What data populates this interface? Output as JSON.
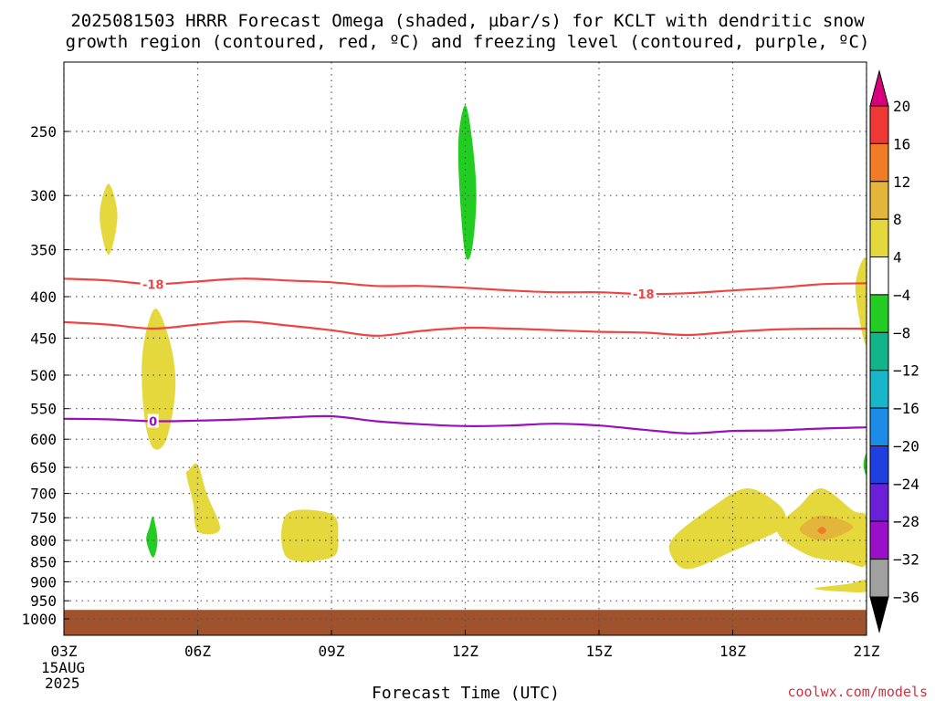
{
  "title": {
    "line1": "2025081503 HRRR Forecast Omega (shaded, µbar/s) for KCLT with dendritic snow",
    "line2": "growth region (contoured, red, ºC) and freezing level (contoured, purple, ºC)"
  },
  "xlabel": "Forecast Time (UTC)",
  "start_date": {
    "day": "15AUG",
    "year": "2025"
  },
  "watermark": "coolwx.com/models",
  "chart_data": {
    "type": "contour",
    "x_ticks": [
      "03Z",
      "06Z",
      "09Z",
      "12Z",
      "15Z",
      "18Z",
      "21Z"
    ],
    "y_ticks": [
      "250",
      "300",
      "350",
      "400",
      "450",
      "500",
      "550",
      "600",
      "650",
      "700",
      "750",
      "800",
      "850",
      "900",
      "950",
      "1000"
    ],
    "y_scale": "log-pressure",
    "grid": true,
    "colorbar": {
      "placement": "right",
      "labels": [
        "20",
        "16",
        "12",
        "8",
        "4",
        "-4",
        "-8",
        "-12",
        "-16",
        "-20",
        "-24",
        "-28",
        "-32",
        "-36"
      ],
      "colors": [
        "#d8007d",
        "#ee3835",
        "#f07c28",
        "#e3b53a",
        "#e5d83d",
        "#ffffff",
        "#22cc22",
        "#13b48a",
        "#19b5c8",
        "#1c8ce8",
        "#1f3fe0",
        "#6a20d8",
        "#9a10c8",
        "#a0a0a0",
        "#000000"
      ]
    },
    "series": [
      {
        "name": "-18",
        "color": "#ee4444",
        "points": [
          [
            3.0,
            380
          ],
          [
            4.0,
            382
          ],
          [
            5.0,
            386
          ],
          [
            6.0,
            383
          ],
          [
            7.0,
            380
          ],
          [
            8.0,
            382
          ],
          [
            9.0,
            384
          ],
          [
            10.0,
            388
          ],
          [
            11.0,
            388
          ],
          [
            12.0,
            390
          ],
          [
            13.0,
            393
          ],
          [
            14.0,
            395
          ],
          [
            15.0,
            395
          ],
          [
            16.0,
            397
          ],
          [
            17.0,
            396
          ],
          [
            18.0,
            393
          ],
          [
            19.0,
            390
          ],
          [
            20.0,
            386
          ],
          [
            21.0,
            385
          ]
        ]
      },
      {
        "name": "-18",
        "color": "#ee4444",
        "points": [
          [
            3.0,
            430
          ],
          [
            4.0,
            433
          ],
          [
            5.0,
            438
          ],
          [
            6.0,
            433
          ],
          [
            7.0,
            429
          ],
          [
            8.0,
            434
          ],
          [
            9.0,
            440
          ],
          [
            10.0,
            447
          ],
          [
            11.0,
            441
          ],
          [
            12.0,
            437
          ],
          [
            13.0,
            438
          ],
          [
            14.0,
            440
          ],
          [
            15.0,
            442
          ],
          [
            16.0,
            443
          ],
          [
            17.0,
            446
          ],
          [
            18.0,
            442
          ],
          [
            19.0,
            439
          ],
          [
            20.0,
            438
          ],
          [
            21.0,
            438
          ]
        ]
      },
      {
        "name": "0",
        "color": "#9911bb",
        "points": [
          [
            3.0,
            566
          ],
          [
            4.0,
            567
          ],
          [
            5.0,
            570
          ],
          [
            6.0,
            569
          ],
          [
            7.0,
            567
          ],
          [
            8.0,
            564
          ],
          [
            9.0,
            562
          ],
          [
            10.0,
            570
          ],
          [
            11.0,
            575
          ],
          [
            12.0,
            578
          ],
          [
            13.0,
            577
          ],
          [
            14.0,
            574
          ],
          [
            15.0,
            577
          ],
          [
            16.0,
            584
          ],
          [
            17.0,
            590
          ],
          [
            18.0,
            586
          ],
          [
            19.0,
            585
          ],
          [
            20.0,
            582
          ],
          [
            21.0,
            580
          ]
        ]
      }
    ],
    "contour_labels": [
      {
        "text": "-18",
        "x": 5.0,
        "y": 386,
        "color": "#ee4444"
      },
      {
        "text": "-18",
        "x": 16.0,
        "y": 397,
        "color": "#ee4444"
      },
      {
        "text": "0",
        "x": 5.0,
        "y": 570,
        "color": "#9911bb"
      }
    ],
    "shaded_regions": [
      {
        "level": "4 to 8",
        "color": "#e5d83d",
        "points": [
          [
            4.0,
            290
          ],
          [
            4.2,
            318
          ],
          [
            4.0,
            355
          ],
          [
            3.8,
            318
          ]
        ]
      },
      {
        "level": "4 to 8",
        "color": "#e5d83d",
        "points": [
          [
            5.1,
            415
          ],
          [
            5.4,
            460
          ],
          [
            5.5,
            520
          ],
          [
            5.3,
            600
          ],
          [
            5.0,
            615
          ],
          [
            4.8,
            560
          ],
          [
            4.75,
            480
          ],
          [
            4.9,
            430
          ]
        ]
      },
      {
        "level": "4 to 8",
        "color": "#e5d83d",
        "points": [
          [
            5.8,
            655
          ],
          [
            6.0,
            645
          ],
          [
            6.2,
            700
          ],
          [
            6.5,
            775
          ],
          [
            6.0,
            780
          ],
          [
            5.9,
            720
          ],
          [
            5.75,
            665
          ]
        ]
      },
      {
        "level": "4 to 8",
        "color": "#e5d83d",
        "points": [
          [
            8.0,
            742
          ],
          [
            9.0,
            742
          ],
          [
            9.15,
            792
          ],
          [
            9.0,
            840
          ],
          [
            8.0,
            840
          ]
        ]
      },
      {
        "level": "4 to 8",
        "color": "#e5d83d",
        "points": [
          [
            19.0,
            720
          ],
          [
            18.3,
            690
          ],
          [
            17.5,
            730
          ],
          [
            16.7,
            790
          ],
          [
            16.6,
            830
          ],
          [
            17.0,
            868
          ],
          [
            18.0,
            825
          ],
          [
            19.0,
            780
          ],
          [
            19.2,
            755
          ]
        ]
      },
      {
        "level": "4 to 8",
        "color": "#e5d83d",
        "points": [
          [
            20.0,
            690
          ],
          [
            20.7,
            735
          ],
          [
            21.0,
            750
          ],
          [
            21.0,
            855
          ],
          [
            20.5,
            850
          ],
          [
            19.7,
            835
          ],
          [
            19.0,
            780
          ],
          [
            19.5,
            725
          ]
        ]
      },
      {
        "level": "4 to 8",
        "color": "#e5d83d",
        "points": [
          [
            21.0,
            360
          ],
          [
            20.75,
            390
          ],
          [
            21.0,
            460
          ]
        ]
      },
      {
        "level": "4 to 8",
        "color": "#e5d83d",
        "points": [
          [
            19.9,
            915
          ],
          [
            20.6,
            905
          ],
          [
            21.0,
            895
          ],
          [
            21.0,
            925
          ],
          [
            20.4,
            925
          ],
          [
            19.9,
            920
          ]
        ]
      },
      {
        "level": "8 to 12",
        "color": "#e3b53a",
        "points": [
          [
            20.0,
            745
          ],
          [
            20.7,
            770
          ],
          [
            20.0,
            800
          ],
          [
            19.5,
            775
          ]
        ]
      },
      {
        "level": "12 to 16",
        "color": "#f07c28",
        "points": [
          [
            20.0,
            770
          ],
          [
            20.1,
            778
          ],
          [
            20.0,
            786
          ],
          [
            19.9,
            778
          ]
        ]
      },
      {
        "level": "-4 to -8",
        "color": "#22cc22",
        "points": [
          [
            12.0,
            232
          ],
          [
            12.15,
            255
          ],
          [
            12.25,
            300
          ],
          [
            12.15,
            350
          ],
          [
            12.0,
            355
          ],
          [
            11.88,
            300
          ],
          [
            11.85,
            255
          ]
        ]
      },
      {
        "level": "-4 to -8",
        "color": "#22cc22",
        "points": [
          [
            5.0,
            748
          ],
          [
            5.1,
            800
          ],
          [
            5.0,
            840
          ],
          [
            4.85,
            800
          ],
          [
            4.92,
            770
          ]
        ]
      },
      {
        "level": "-4 to -8",
        "color": "#22cc22",
        "points": [
          [
            21.0,
            625
          ],
          [
            20.93,
            645
          ],
          [
            21.0,
            665
          ]
        ]
      }
    ],
    "surface": {
      "color": "#a0522d",
      "level": 975
    }
  }
}
